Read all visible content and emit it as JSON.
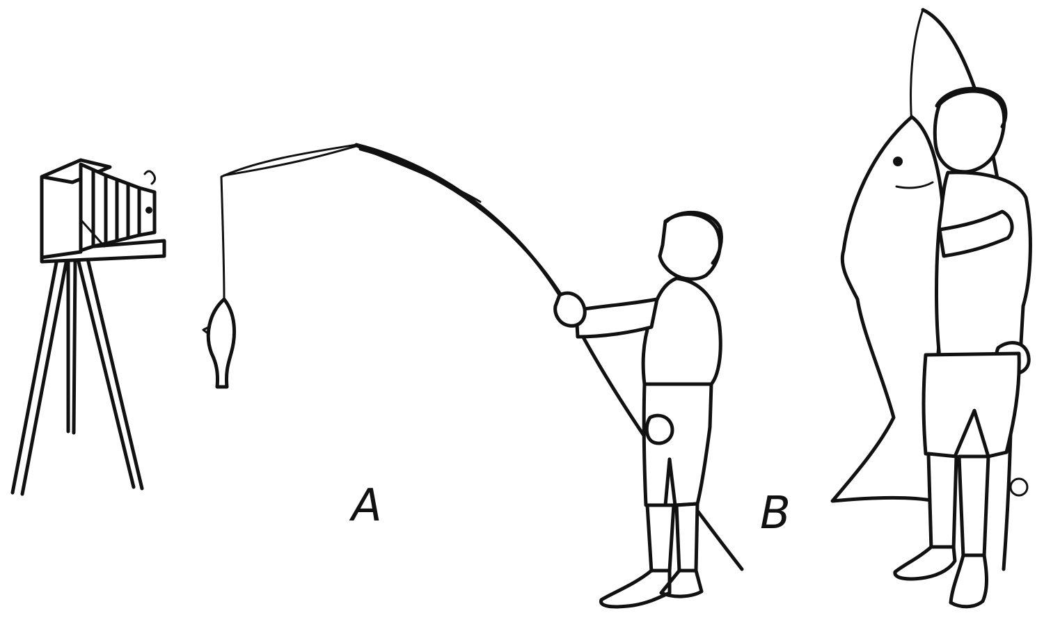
{
  "labels": {
    "a": "A",
    "b": "B"
  },
  "colors": {
    "ink": "#111111",
    "paper": "#ffffff"
  }
}
